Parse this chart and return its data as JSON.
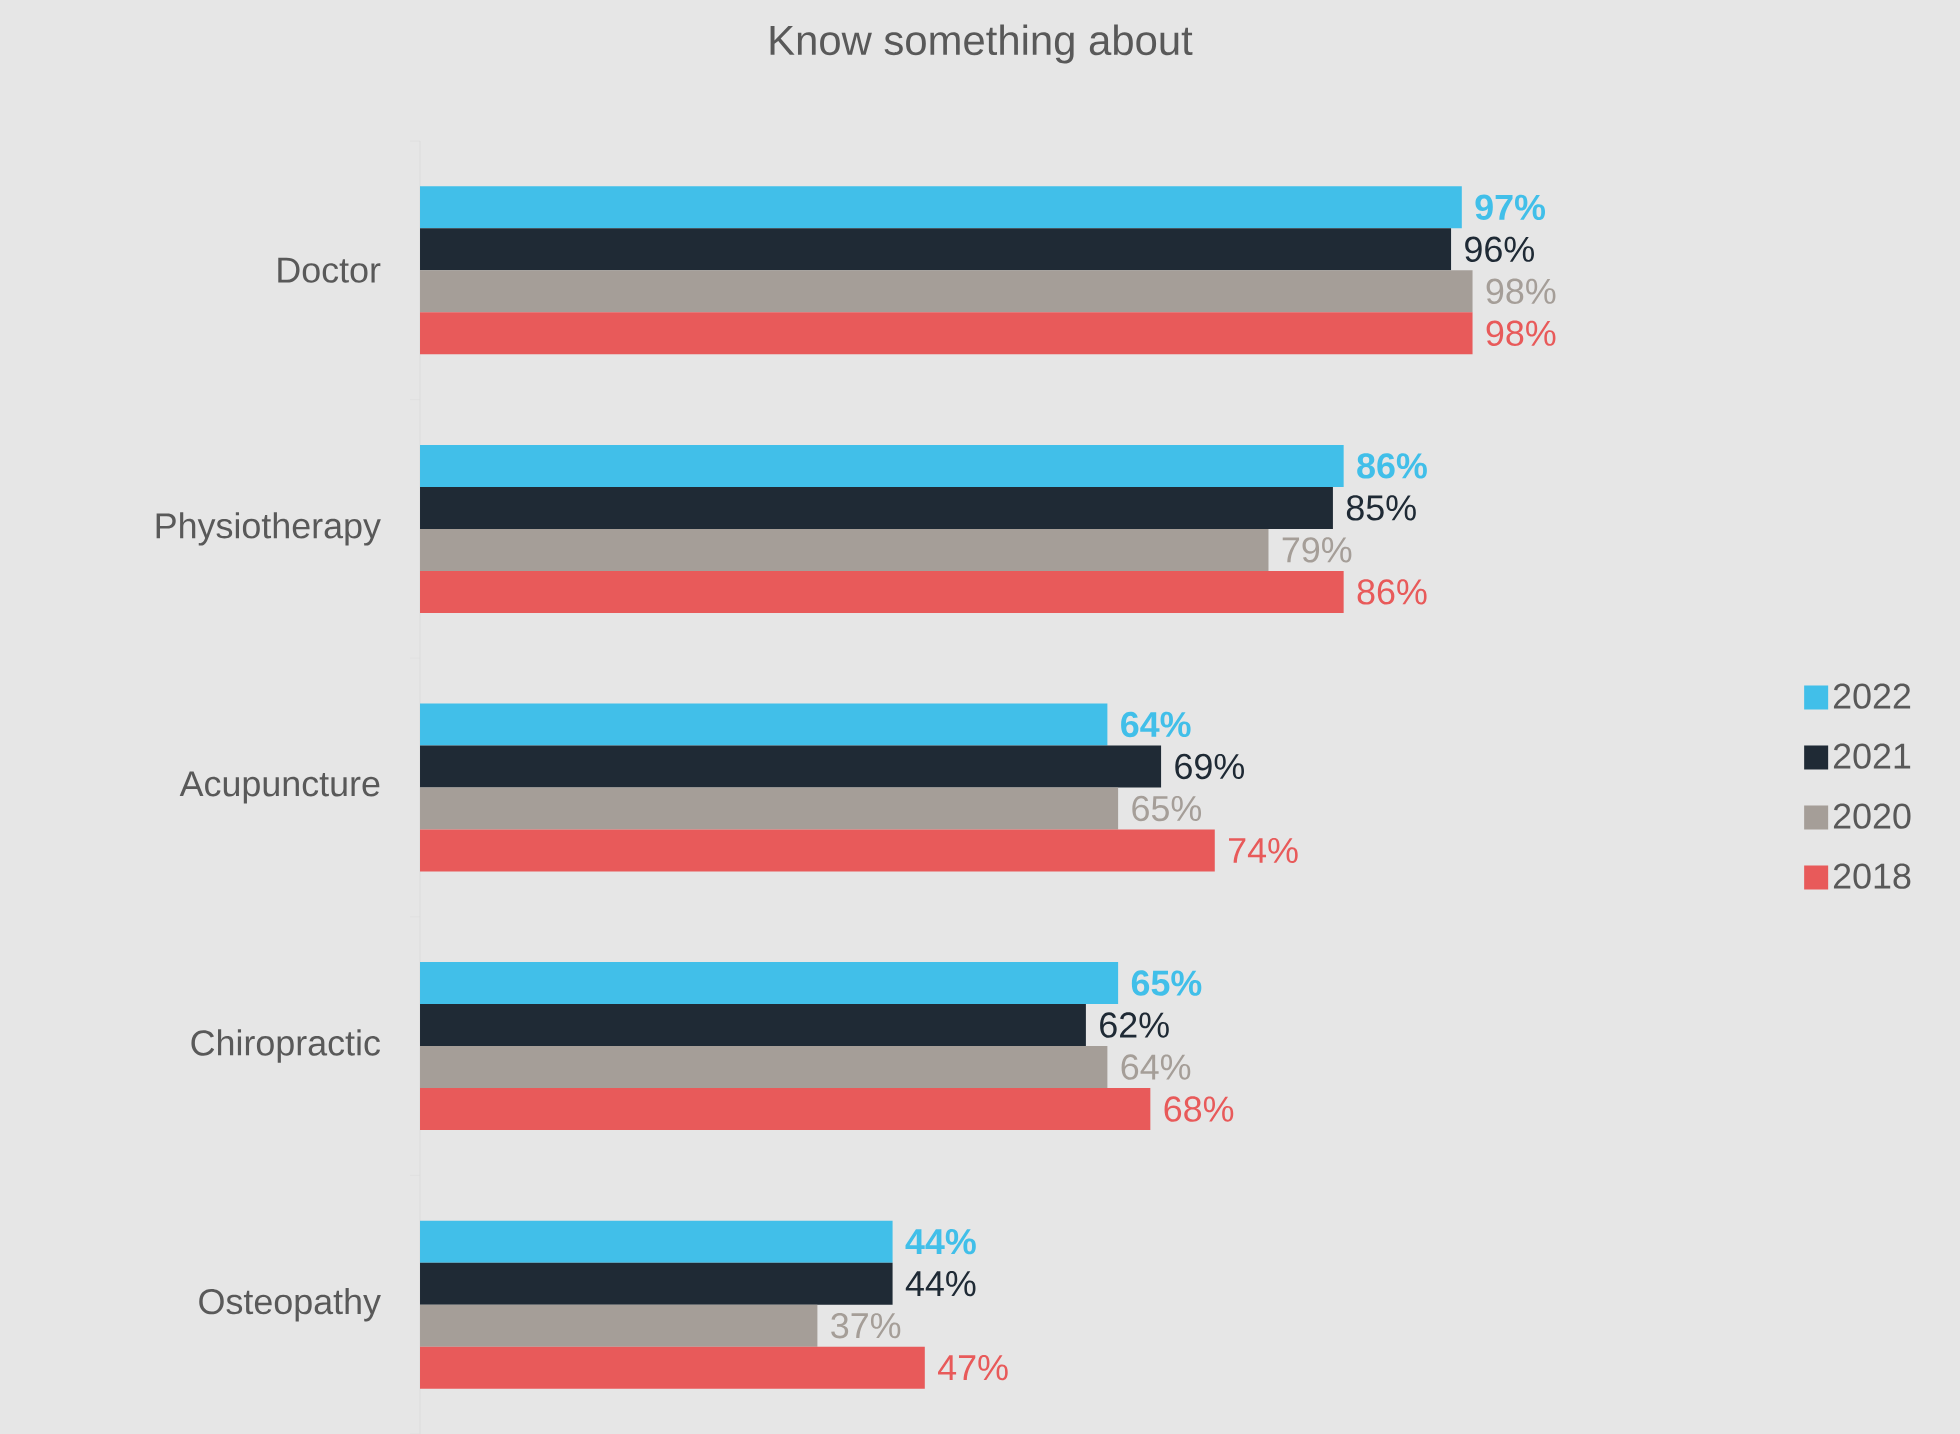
{
  "chart_data": {
    "type": "bar",
    "orientation": "horizontal",
    "title": "Know something about",
    "categories": [
      "Doctor",
      "Physiotherapy",
      "Acupuncture",
      "Chiropractic",
      "Osteopathy"
    ],
    "legend": "right",
    "series": [
      {
        "name": "2022",
        "color": "#41bfe9",
        "values": [
          97,
          86,
          64,
          65,
          44
        ],
        "value_labels": [
          "97%",
          "86%",
          "64%",
          "65%",
          "44%"
        ]
      },
      {
        "name": "2021",
        "color": "#1f2a35",
        "values": [
          96,
          85,
          69,
          62,
          44
        ],
        "value_labels": [
          "96%",
          "85%",
          "69%",
          "62%",
          "44%"
        ]
      },
      {
        "name": "2020",
        "color": "#a59e98",
        "values": [
          98,
          79,
          65,
          64,
          37
        ],
        "value_labels": [
          "98%",
          "79%",
          "65%",
          "64%",
          "37%"
        ]
      },
      {
        "name": "2018",
        "color": "#e85a5a",
        "values": [
          98,
          86,
          74,
          68,
          47
        ],
        "value_labels": [
          "98%",
          "86%",
          "74%",
          "68%",
          "47%"
        ]
      }
    ]
  }
}
